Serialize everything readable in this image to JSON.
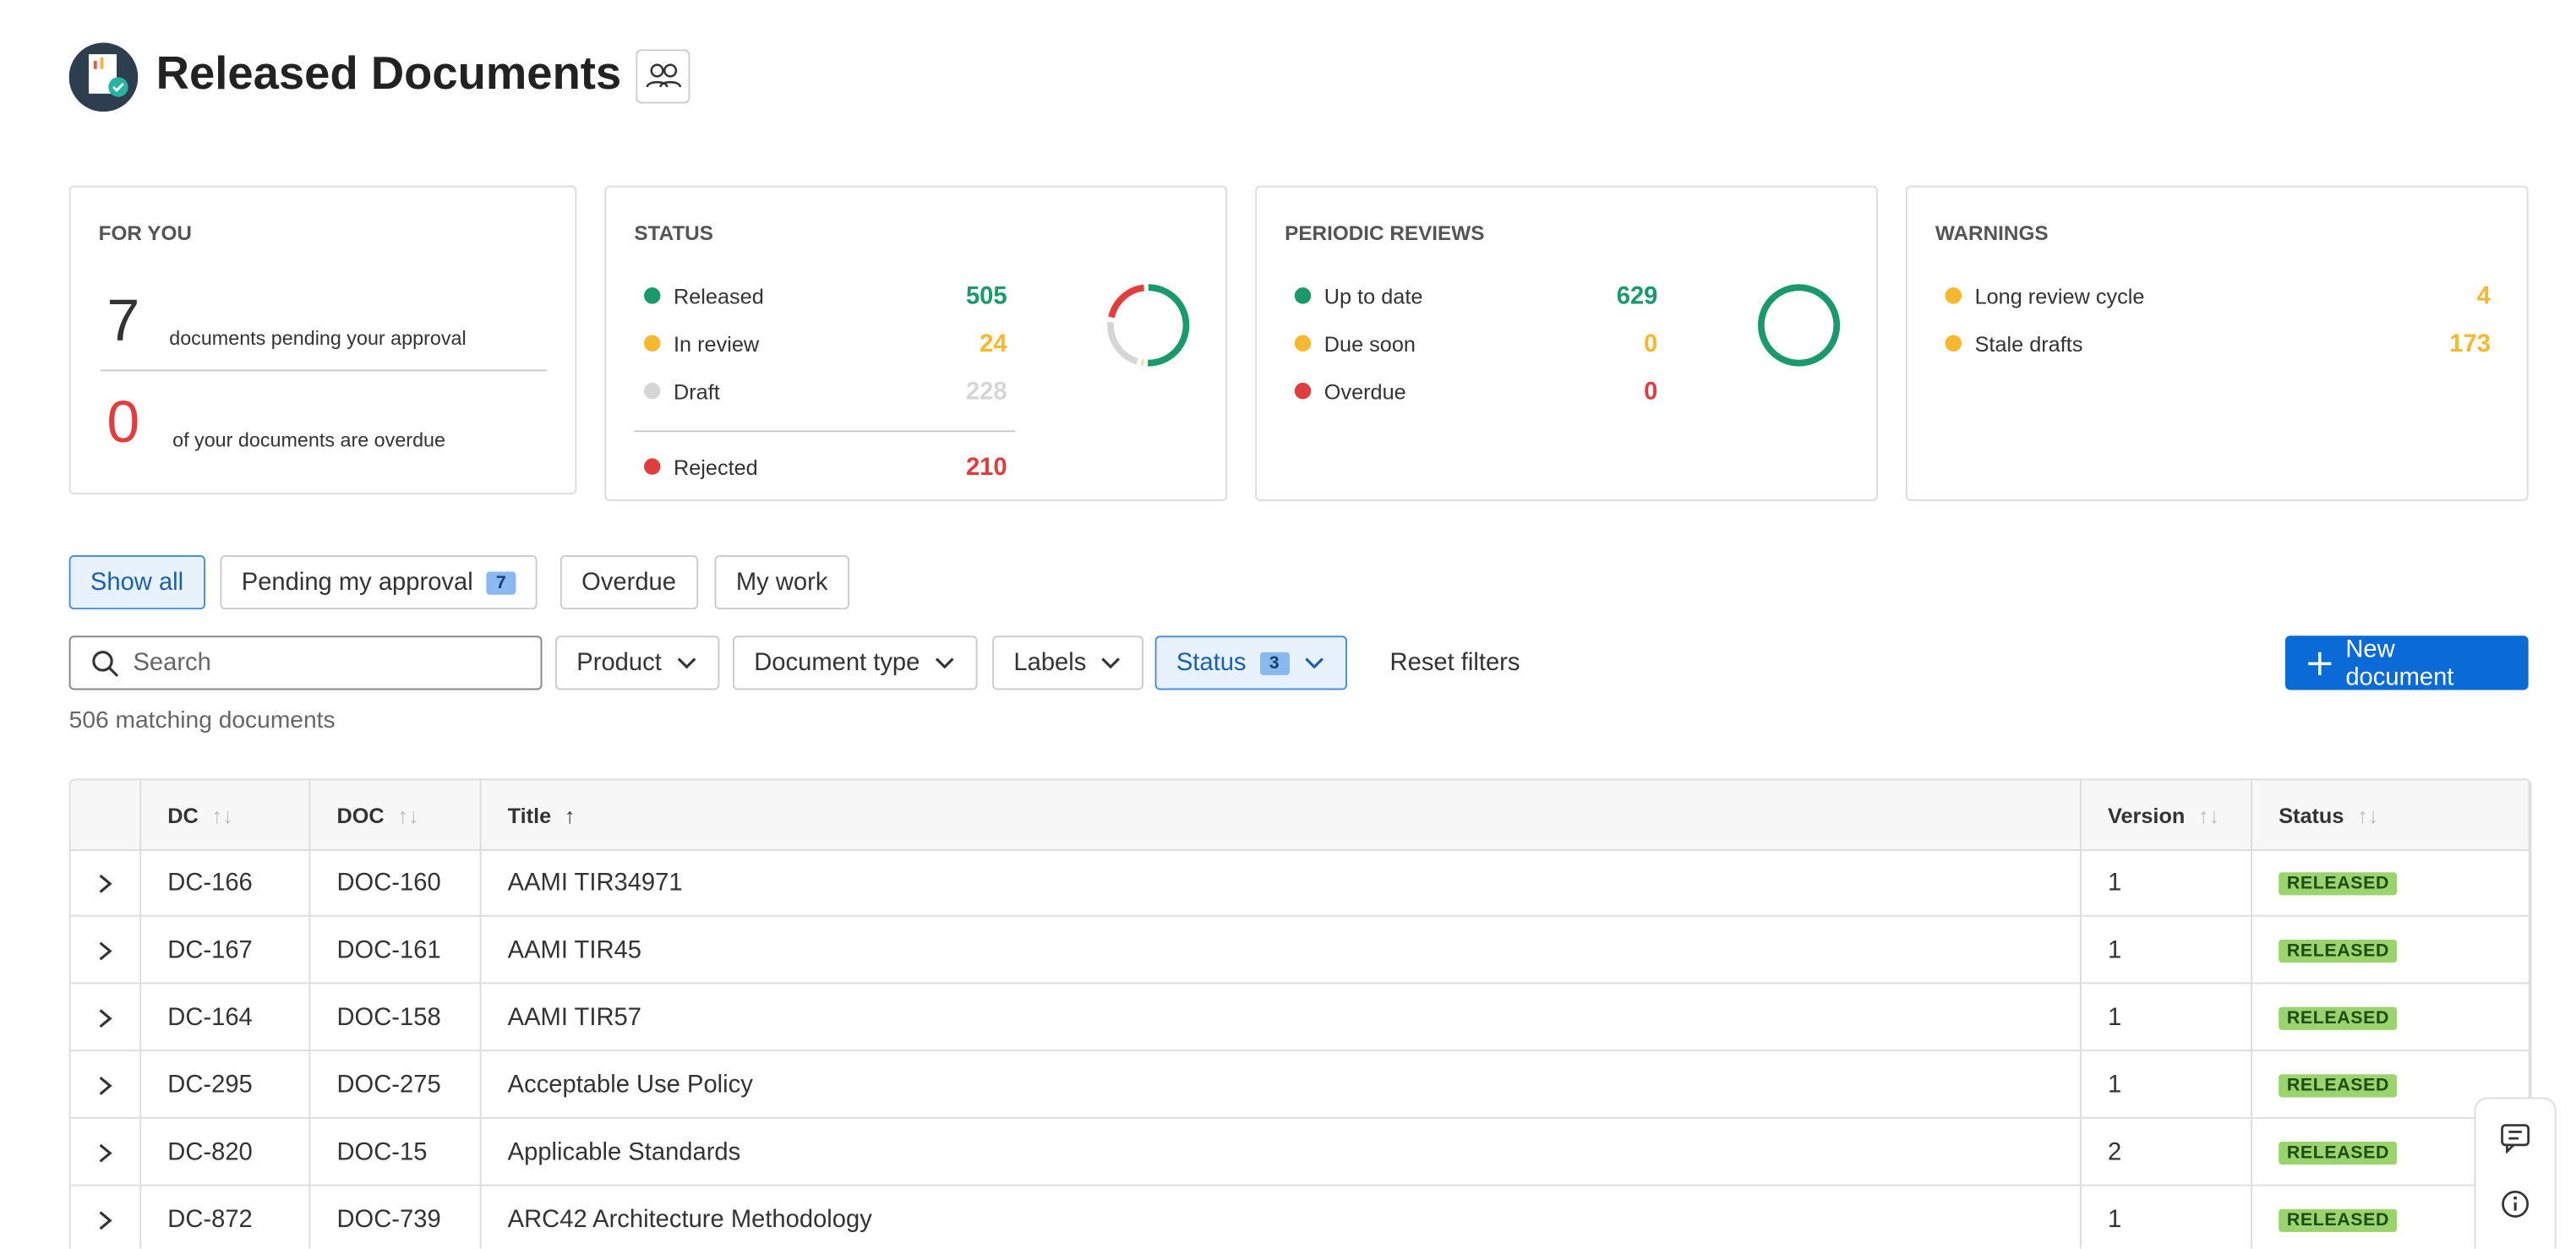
{
  "header": {
    "title": "Released Documents"
  },
  "for_you": {
    "title": "FOR YOU",
    "items": [
      {
        "value": 7,
        "label": "documents pending your approval",
        "color": "#333333"
      },
      {
        "value": 0,
        "label": "of your documents are overdue",
        "color": "#e03e3e"
      }
    ]
  },
  "status": {
    "title": "STATUS",
    "items": [
      {
        "label": "Released",
        "value": 505,
        "color": "#1a9a6c"
      },
      {
        "label": "In review",
        "value": 24,
        "color": "#f5b82e"
      },
      {
        "label": "Draft",
        "value": 228,
        "color": "#d6d6d6"
      }
    ],
    "other": [
      {
        "label": "Rejected",
        "value": 210,
        "color": "#e03e3e"
      }
    ]
  },
  "periodic_reviews": {
    "title": "PERIODIC REVIEWS",
    "items": [
      {
        "label": "Up to date",
        "value": 629,
        "color": "#1a9a6c"
      },
      {
        "label": "Due soon",
        "value": 0,
        "color": "#f5b82e"
      },
      {
        "label": "Overdue",
        "value": 0,
        "color": "#e03e3e"
      }
    ]
  },
  "warnings": {
    "title": "WARNINGS",
    "items": [
      {
        "label": "Long review cycle",
        "value": 4,
        "color": "#f5b82e"
      },
      {
        "label": "Stale drafts",
        "value": 173,
        "color": "#f5b82e"
      }
    ]
  },
  "tabs": [
    {
      "label": "Show all"
    },
    {
      "label": "Pending my approval",
      "badge": 7
    },
    {
      "label": "Overdue"
    },
    {
      "label": "My work"
    }
  ],
  "filters": {
    "search": "Search",
    "dropdowns": [
      "Product",
      "Document type",
      "Labels"
    ],
    "status": {
      "label": "Status",
      "badge": 3
    },
    "reset": "Reset filters",
    "new": "New document"
  },
  "result_count": "506 matching documents",
  "table": {
    "columns": [
      "DC",
      "DOC",
      "Title",
      "Version",
      "Status"
    ],
    "rows": [
      [
        "DC-166",
        "DOC-160",
        "AAMI TIR34971",
        1,
        "RELEASED"
      ],
      [
        "DC-167",
        "DOC-161",
        "AAMI TIR45",
        1,
        "RELEASED"
      ],
      [
        "DC-164",
        "DOC-158",
        "AAMI TIR57",
        1,
        "RELEASED"
      ],
      [
        "DC-295",
        "DOC-275",
        "Acceptable Use Policy",
        1,
        "RELEASED"
      ],
      [
        "DC-820",
        "DOC-15",
        "Applicable Standards",
        2,
        "RELEASED"
      ],
      [
        "DC-872",
        "DOC-739",
        "ARC42 Architecture Methodology",
        1,
        "RELEASED"
      ]
    ]
  }
}
